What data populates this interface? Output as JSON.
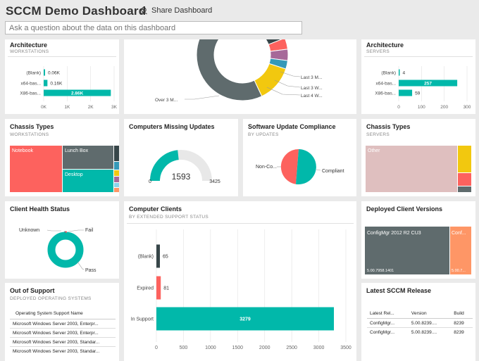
{
  "header": {
    "title": "SCCM Demo Dashboard",
    "share_label": "Share Dashboard",
    "qa_placeholder": "Ask a question about the data on this dashboard"
  },
  "tiles": {
    "arch_ws": {
      "title": "Architecture",
      "subtitle": "WORKSTATIONS",
      "chart_data": {
        "type": "bar",
        "orientation": "horizontal",
        "categories": [
          "(Blank)",
          "x64-bas...",
          "X86-bas..."
        ],
        "values": [
          0.06,
          0.16,
          2.86
        ],
        "value_labels": [
          "0.06K",
          "0.16K",
          "2.86K"
        ],
        "x_ticks": [
          "0K",
          "1K",
          "2K",
          "3K"
        ],
        "xlim": [
          0,
          3
        ],
        "grid": true
      }
    },
    "donut_top": {
      "chart_data": {
        "type": "pie",
        "labels": [
          "Last 3 M...",
          "Last 3 W...",
          "Last 4 W...",
          "Over 3 M..."
        ],
        "colors": [
          "#374649",
          "#fd625e",
          "#a66999",
          "#3599b8",
          "#f2c80f",
          "#5f6b6d"
        ]
      }
    },
    "arch_srv": {
      "title": "Architecture",
      "subtitle": "SERVERS",
      "chart_data": {
        "type": "bar",
        "orientation": "horizontal",
        "categories": [
          "(Blank)",
          "x64-bas...",
          "X86-bas..."
        ],
        "values": [
          4,
          257,
          59
        ],
        "value_labels": [
          "4",
          "257",
          "59"
        ],
        "x_ticks": [
          "0",
          "100",
          "200",
          "300"
        ],
        "xlim": [
          0,
          300
        ],
        "grid": true
      }
    },
    "chassis_ws": {
      "title": "Chassis Types",
      "subtitle": "WORKSTATIONS",
      "chart_data": {
        "type": "treemap",
        "labels": [
          "Notebook",
          "Lunch Box",
          "Desktop"
        ]
      }
    },
    "missing": {
      "title": "Computers Missing Updates",
      "chart_data": {
        "type": "gauge",
        "value": 1593,
        "min": 0,
        "max": 3425,
        "value_label": "1593",
        "min_label": "0",
        "max_label": "3425"
      }
    },
    "compliance": {
      "title": "Software Update Compliance",
      "subtitle": "BY UPDATES",
      "chart_data": {
        "type": "pie",
        "labels": [
          "Non-Co...",
          "Compliant"
        ]
      }
    },
    "chassis_srv": {
      "title": "Chassis Types",
      "subtitle": "SERVERS",
      "chart_data": {
        "type": "treemap",
        "labels": [
          "Other"
        ]
      }
    },
    "health": {
      "title": "Client Health Status",
      "chart_data": {
        "type": "pie",
        "labels": [
          "Unknown",
          "Fail",
          "Pass"
        ]
      }
    },
    "clients": {
      "title": "Computer Clients",
      "subtitle": "BY EXTENDED SUPPORT STATUS",
      "chart_data": {
        "type": "bar",
        "orientation": "horizontal",
        "categories": [
          "(Blank)",
          "Expired",
          "In Support"
        ],
        "values": [
          65,
          81,
          3279
        ],
        "value_labels": [
          "65",
          "81",
          "3279"
        ],
        "colors": [
          "#374649",
          "#fd625e",
          "#01b8aa"
        ],
        "x_ticks": [
          "0",
          "500",
          "1000",
          "1500",
          "2000",
          "2500",
          "3000",
          "3500"
        ],
        "xlim": [
          0,
          3500
        ],
        "grid": true
      }
    },
    "versions": {
      "title": "Deployed Client Versions",
      "chart_data": {
        "type": "treemap",
        "labels": [
          "ConfigMgr 2012 R2 CU3",
          "Conf..."
        ],
        "sublabels": [
          "5.00.7958.1401",
          "5.00.7..."
        ]
      }
    },
    "oos": {
      "title": "Out of Support",
      "subtitle": "DEPLOYED OPERATING SYSTEMS",
      "table": {
        "header": "Operating System Support Name",
        "rows": [
          "Microsoft Windows Server 2003, Enterpr...",
          "Microsoft Windows Server 2003, Enterpr...",
          "Microsoft Windows Server 2003, Standar...",
          "Microsoft Windows Server 2003, Standar..."
        ]
      }
    },
    "latest": {
      "title": "Latest SCCM Release",
      "table": {
        "headers": [
          "Latest Rel...",
          "Version",
          "Build"
        ],
        "rows": [
          [
            "ConfigMgr...",
            "5.00.8239....",
            "8239"
          ],
          [
            "ConfigMgr...",
            "5.00.8239....",
            "8239"
          ]
        ]
      }
    }
  }
}
